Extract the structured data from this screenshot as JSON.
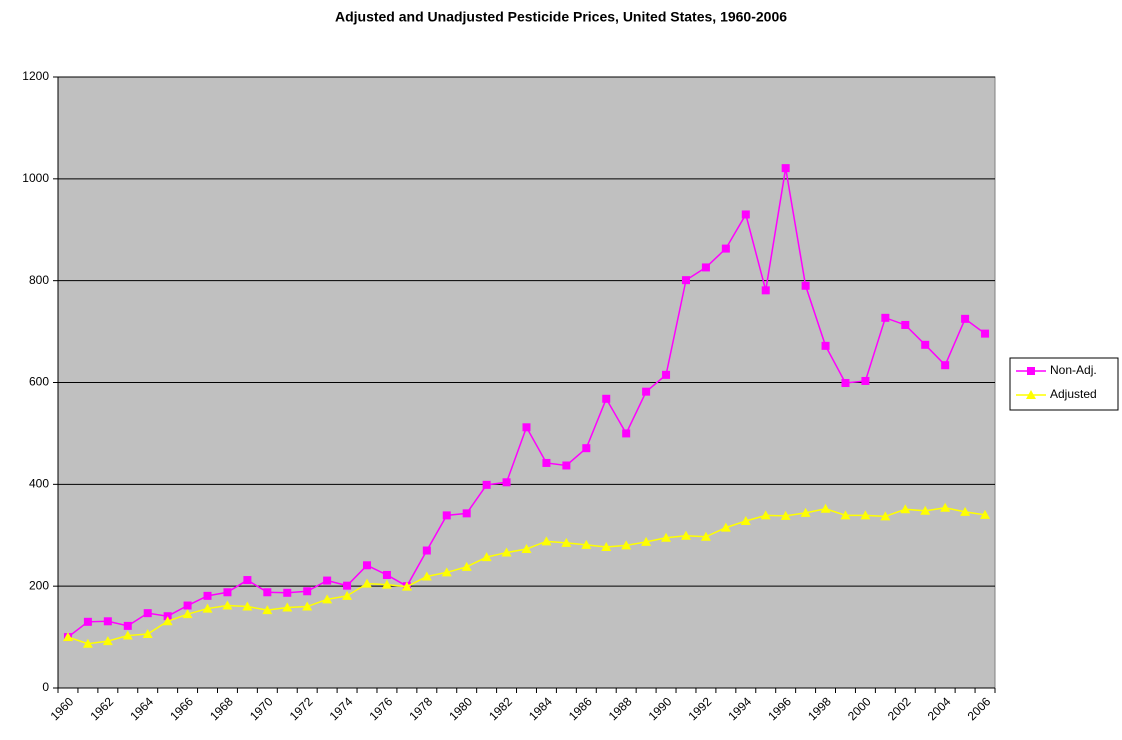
{
  "chart_data": {
    "type": "line",
    "title": "Adjusted and Unadjusted Pesticide Prices, United States, 1960-2006",
    "categories": [
      "1960",
      null,
      "1962",
      null,
      "1964",
      null,
      "1966",
      null,
      "1968",
      null,
      "1970",
      null,
      "1972",
      null,
      "1974",
      null,
      "1976",
      null,
      "1978",
      null,
      "1980",
      null,
      "1982",
      null,
      "1984",
      null,
      "1986",
      null,
      "1988",
      null,
      "1990",
      null,
      "1992",
      null,
      "1994",
      null,
      "1996",
      null,
      "1998",
      null,
      "2000",
      null,
      "2002",
      null,
      "2004",
      null,
      "2006"
    ],
    "series": [
      {
        "name": "Non-Adj.",
        "color": "#ff00ff",
        "marker": "square",
        "values": [
          100,
          130,
          131,
          122,
          147,
          141,
          162,
          181,
          188,
          212,
          188,
          187,
          190,
          211,
          201,
          241,
          222,
          200,
          270,
          339,
          343,
          399,
          404,
          512,
          442,
          437,
          471,
          568,
          500,
          582,
          615,
          801,
          826,
          863,
          930,
          781,
          1021,
          790,
          672,
          599,
          603,
          727,
          713,
          674,
          634,
          725,
          696
        ]
      },
      {
        "name": "Adjusted",
        "color": "#ffff00",
        "marker": "triangle",
        "values": [
          100,
          87,
          92,
          103,
          106,
          131,
          145,
          156,
          162,
          160,
          153,
          158,
          160,
          174,
          181,
          205,
          203,
          199,
          219,
          227,
          238,
          257,
          266,
          273,
          288,
          285,
          281,
          277,
          280,
          287,
          295,
          299,
          297,
          315,
          328,
          339,
          338,
          344,
          352,
          339,
          339,
          337,
          351,
          348,
          354,
          346,
          340
        ]
      }
    ],
    "ylim": [
      0,
      1200
    ],
    "yticks": [
      0,
      200,
      400,
      600,
      800,
      1000,
      1200
    ],
    "grid": true,
    "plot_background": "#c0c0c0",
    "legend": "right"
  }
}
